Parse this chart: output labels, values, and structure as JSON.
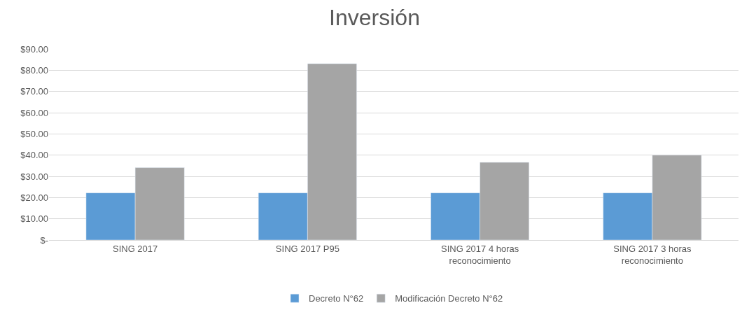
{
  "chart_data": {
    "type": "bar",
    "title": "Inversión",
    "categories": [
      "SING 2017",
      "SING 2017 P95",
      "SING 2017 4 horas\nreconocimiento",
      "SING 2017 3 horas\nreconocimiento"
    ],
    "series": [
      {
        "name": "Decreto N°62",
        "color": "#5b9bd5",
        "values": [
          22.2,
          22.2,
          22.2,
          22.2
        ]
      },
      {
        "name": "Modificación Decreto N°62",
        "color": "#a5a5a5",
        "values": [
          34.1,
          83.1,
          36.6,
          40.0
        ]
      }
    ],
    "ylim": [
      0,
      90
    ],
    "yticks": [
      {
        "value": 0,
        "label": "$-"
      },
      {
        "value": 10,
        "label": "$10.00"
      },
      {
        "value": 20,
        "label": "$20.00"
      },
      {
        "value": 30,
        "label": "$30.00"
      },
      {
        "value": 40,
        "label": "$40.00"
      },
      {
        "value": 50,
        "label": "$50.00"
      },
      {
        "value": 60,
        "label": "$60.00"
      },
      {
        "value": 70,
        "label": "$70.00"
      },
      {
        "value": 80,
        "label": "$80.00"
      },
      {
        "value": 90,
        "label": "$90.00"
      }
    ],
    "grid": "y",
    "legend": "bottom"
  }
}
